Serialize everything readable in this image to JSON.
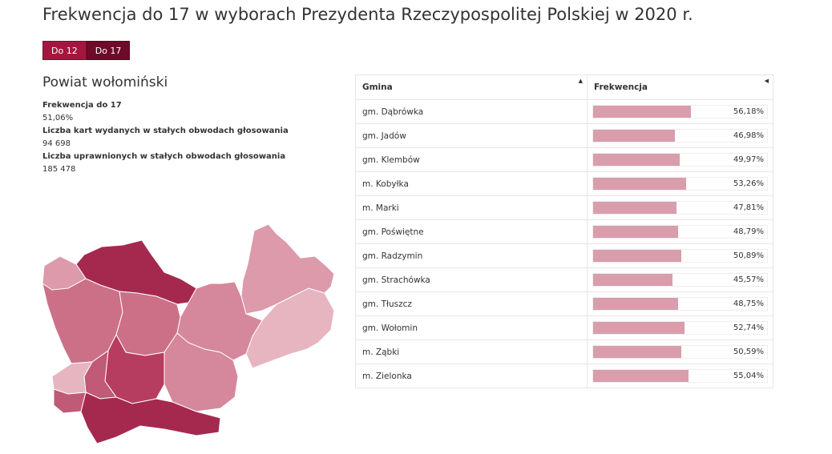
{
  "page": {
    "title": "Frekwencja do 17 w wyborach Prezydenta Rzeczypospolitej Polskiej w 2020 r."
  },
  "toggle": {
    "do12_label": "Do 12",
    "do17_label": "Do 17",
    "active": "Do 17"
  },
  "colors": {
    "accent_dark": "#6e0a2a",
    "accent": "#a5163f",
    "bar_fill": "#d99dab"
  },
  "powiat": {
    "name": "Powiat wołomiński",
    "turnout_label": "Frekwencja do 17",
    "turnout_value": "51,06%",
    "cards_label": "Liczba kart wydanych w stałych obwodach głosowania",
    "cards_value": "94 698",
    "eligible_label": "Liczba uprawnionych w stałych obwodach głosowania",
    "eligible_value": "185 478"
  },
  "table": {
    "col_name": "Gmina",
    "col_value": "Frekwencja"
  },
  "chart_data": {
    "type": "bar",
    "categories": [
      "gm. Dąbrówka",
      "gm. Jadów",
      "gm. Klembów",
      "m. Kobyłka",
      "m. Marki",
      "gm. Poświętne",
      "gm. Radzymin",
      "gm. Strachówka",
      "gm. Tłuszcz",
      "gm. Wołomin",
      "m. Ząbki",
      "m. Zielonka"
    ],
    "values": [
      56.18,
      46.98,
      49.97,
      53.26,
      47.81,
      48.79,
      50.89,
      45.57,
      48.75,
      52.74,
      50.59,
      55.04
    ],
    "value_labels": [
      "56,18%",
      "46,98%",
      "49,97%",
      "53,26%",
      "47,81%",
      "48,79%",
      "50,89%",
      "45,57%",
      "48,75%",
      "52,74%",
      "50,59%",
      "55,04%"
    ],
    "xlim": [
      0,
      100
    ]
  },
  "map": {
    "choropleth_colors": [
      "#e6b5c0",
      "#dc9aab",
      "#d5879b",
      "#cc7088",
      "#c05a76",
      "#b63d60",
      "#a5294e"
    ]
  }
}
